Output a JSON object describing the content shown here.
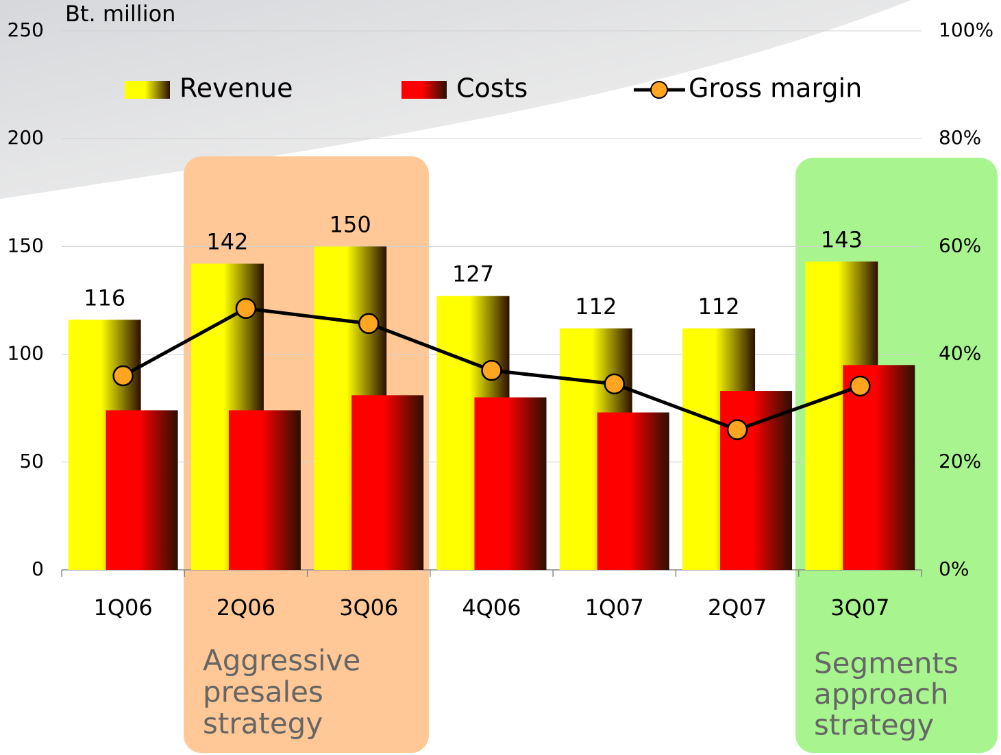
{
  "chart_data": {
    "type": "bar",
    "y_axis_label": "Bt. million",
    "categories": [
      "1Q06",
      "2Q06",
      "3Q06",
      "4Q06",
      "1Q07",
      "2Q07",
      "3Q07"
    ],
    "series": [
      {
        "name": "Revenue",
        "color": "#ffff00",
        "values": [
          116,
          142,
          150,
          127,
          112,
          112,
          143
        ]
      },
      {
        "name": "Costs",
        "color": "#ff0000",
        "values": [
          74,
          74,
          81,
          80,
          73,
          83,
          95
        ]
      },
      {
        "name": "Gross margin",
        "type": "line",
        "axis": "y2",
        "color": "#000000",
        "marker_color": "#ffa520",
        "values": [
          36,
          48.5,
          45.7,
          37,
          34.5,
          26,
          34.1
        ]
      }
    ],
    "ylim": [
      0,
      250
    ],
    "yticks": [
      0,
      50,
      100,
      150,
      200,
      250
    ],
    "y2lim": [
      0,
      100
    ],
    "y2ticks": [
      {
        "value": 0,
        "label": "0%"
      },
      {
        "value": 20,
        "label": "20%"
      },
      {
        "value": 40,
        "label": "40%"
      },
      {
        "value": 60,
        "label": "60%"
      },
      {
        "value": 80,
        "label": "80%"
      },
      {
        "value": 100,
        "label": "100%"
      }
    ],
    "grid": true,
    "annotations": [
      {
        "lines": [
          "Aggressive",
          "presales",
          "strategy"
        ],
        "color": "#ffc896"
      },
      {
        "lines": [
          "Segments",
          "approach",
          "strategy"
        ],
        "color": "#a8f590"
      }
    ]
  }
}
